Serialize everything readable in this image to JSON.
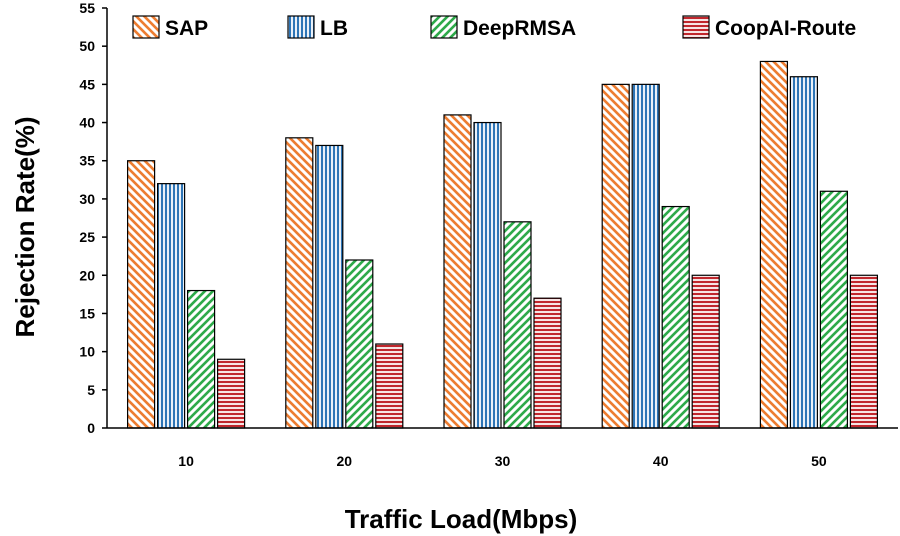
{
  "chart_data": {
    "type": "bar",
    "title": "",
    "xlabel": "Traffic Load(Mbps)",
    "ylabel": "Rejection Rate(%)",
    "categories": [
      "10",
      "20",
      "30",
      "40",
      "50"
    ],
    "ylim": [
      0,
      55
    ],
    "yticks": [
      0,
      5,
      10,
      15,
      20,
      25,
      30,
      35,
      40,
      45,
      50,
      55
    ],
    "grid": false,
    "legend_position": "top",
    "series": [
      {
        "name": "SAP",
        "values": [
          35,
          38,
          41,
          45,
          48
        ],
        "color": "#ed7d31",
        "pattern": "diagonal-backslash"
      },
      {
        "name": "LB",
        "values": [
          32,
          37,
          40,
          45,
          46
        ],
        "color": "#2e75b6",
        "pattern": "vertical"
      },
      {
        "name": "DeepRMSA",
        "values": [
          18,
          22,
          27,
          29,
          31
        ],
        "color": "#2eaa4a",
        "pattern": "diagonal-slash"
      },
      {
        "name": "CoopAI-Route",
        "values": [
          9,
          11,
          17,
          20,
          20
        ],
        "color": "#c0272d",
        "pattern": "horizontal"
      }
    ]
  }
}
